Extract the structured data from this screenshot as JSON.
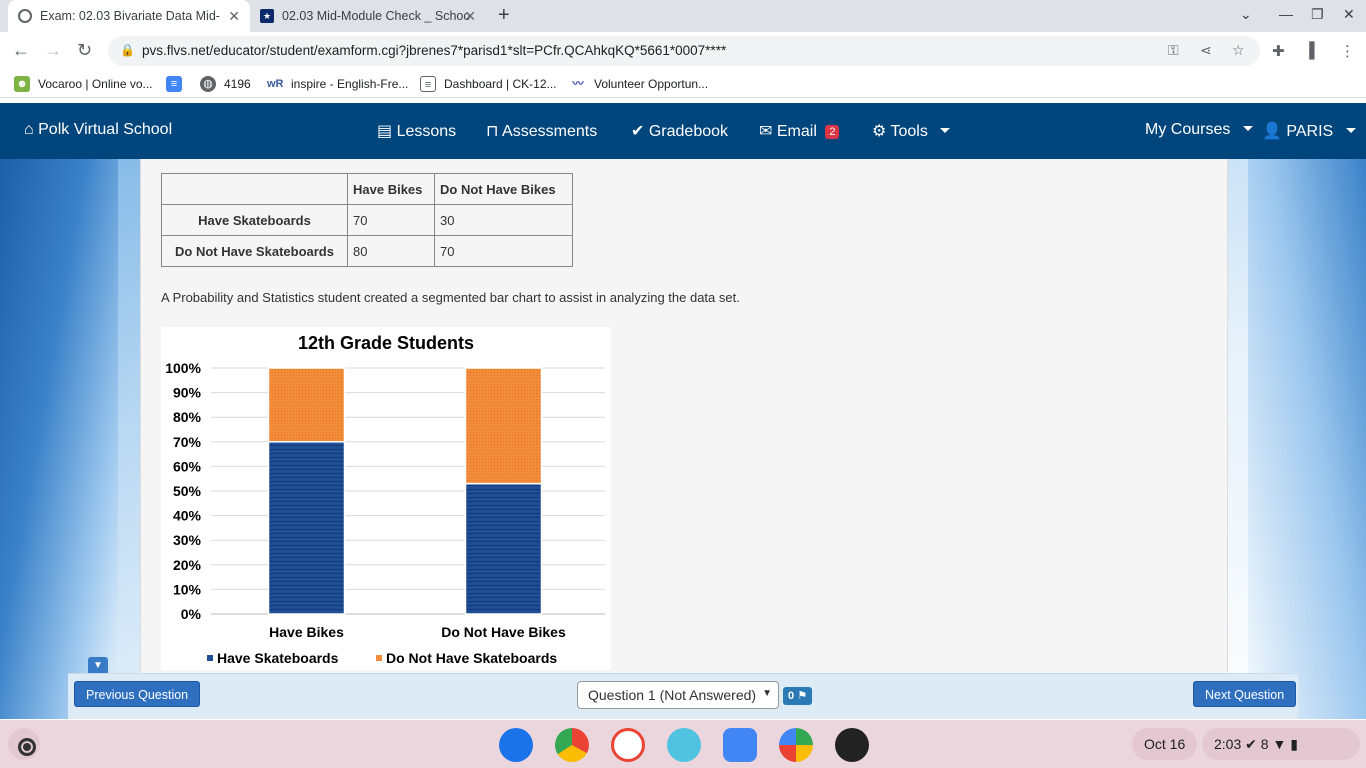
{
  "browser": {
    "tabs": [
      {
        "title": "Exam: 02.03 Bivariate Data Mid-",
        "active": true
      },
      {
        "title": "02.03 Mid-Module Check _ Schoo",
        "active": false
      }
    ],
    "url": "pvs.flvs.net/educator/student/examform.cgi?jbrenes7*parisd1*slt=PCfr.QCAhkqKQ*5661*0007****",
    "bookmarks": [
      {
        "label": "Vocaroo | Online vo...",
        "icon": "vocaroo-icon"
      },
      {
        "label": "",
        "icon": "docs-bookmark-icon"
      },
      {
        "label": "4196",
        "icon": "globe-icon"
      },
      {
        "label": "inspire - English-Fre...",
        "icon": "wordreference-icon"
      },
      {
        "label": "Dashboard | CK-12...",
        "icon": "ck12-icon"
      },
      {
        "label": "Volunteer Opportun...",
        "icon": "volunteer-icon"
      }
    ]
  },
  "site": {
    "brand": "Polk Virtual School",
    "nav": {
      "lessons": "Lessons",
      "assessments": "Assessments",
      "gradebook": "Gradebook",
      "email": "Email",
      "email_count": "2",
      "tools": "Tools",
      "my_courses": "My Courses",
      "user": "PARIS"
    }
  },
  "table": {
    "headers": [
      "",
      "Have Bikes",
      "Do Not Have Bikes"
    ],
    "rows": [
      {
        "label": "Have Skateboards",
        "values": [
          "70",
          "30"
        ]
      },
      {
        "label": "Do Not Have Skateboards",
        "values": [
          "80",
          "70"
        ]
      }
    ]
  },
  "prompt": "A Probability and Statistics student created a segmented bar chart to assist in analyzing the data set.",
  "chart_data": {
    "type": "bar",
    "stacked": true,
    "title": "12th Grade Students",
    "categories": [
      "Have Bikes",
      "Do Not Have Bikes"
    ],
    "series": [
      {
        "name": "Have Skateboards",
        "values": [
          70,
          53
        ],
        "color": "#1f4e96"
      },
      {
        "name": "Do Not Have Skateboards",
        "values": [
          30,
          47
        ],
        "color": "#f28c38"
      }
    ],
    "yticks": [
      "0%",
      "10%",
      "20%",
      "30%",
      "40%",
      "50%",
      "60%",
      "70%",
      "80%",
      "90%",
      "100%"
    ],
    "ylim": [
      0,
      100
    ],
    "grid": true,
    "legend": "bottom"
  },
  "exam_bar": {
    "previous": "Previous Question",
    "next": "Next Question",
    "question_select": "Question 1 (Not Answered)",
    "flag_count": "0"
  },
  "shelf": {
    "date": "Oct 16",
    "time": "2:03",
    "notification_count": "8"
  }
}
